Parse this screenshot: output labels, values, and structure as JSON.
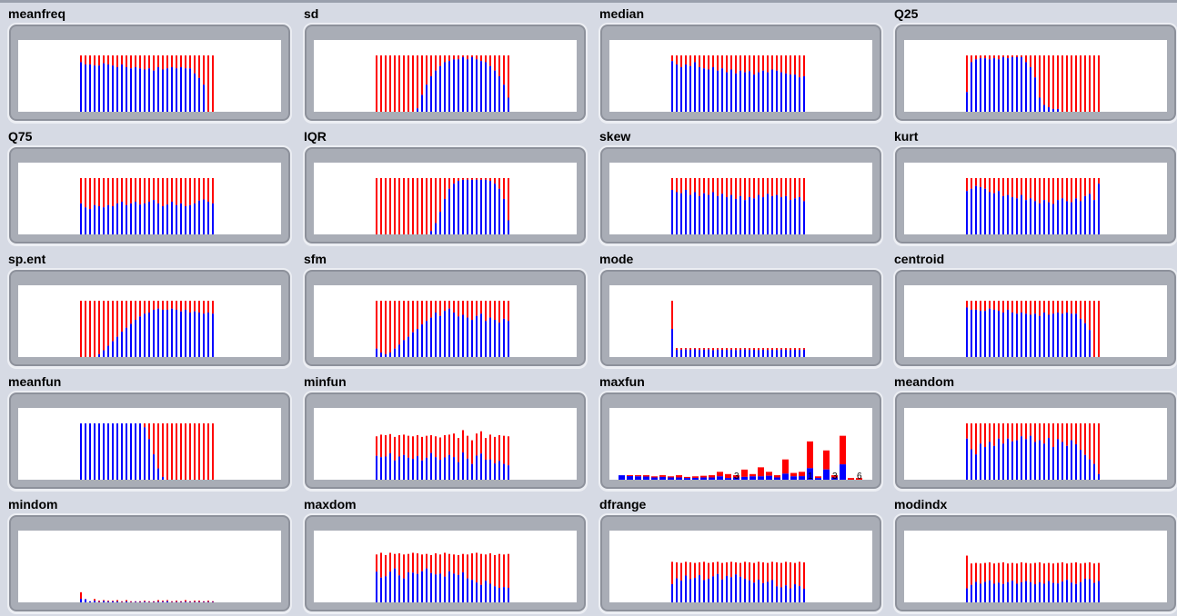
{
  "colors": {
    "a": "#ff0000",
    "b": "#0000ff",
    "label": "#000000"
  },
  "chart_data": [
    {
      "name": "meanfreq",
      "type": "bar",
      "stacked_proportion": true,
      "bars": 30,
      "full": [
        100,
        100,
        100,
        100,
        100,
        100,
        100,
        100,
        100,
        100,
        100,
        100,
        100,
        100,
        100,
        100,
        100,
        100,
        100,
        100,
        100,
        100,
        100,
        100,
        100,
        100,
        100,
        100,
        100,
        100
      ],
      "blue_fraction": [
        0.88,
        0.84,
        0.84,
        0.82,
        0.82,
        0.86,
        0.84,
        0.82,
        0.79,
        0.84,
        0.79,
        0.77,
        0.79,
        0.77,
        0.75,
        0.77,
        0.73,
        0.79,
        0.75,
        0.77,
        0.79,
        0.77,
        0.79,
        0.77,
        0.77,
        0.68,
        0.6,
        0.48,
        0.0,
        0.0
      ]
    },
    {
      "name": "sd",
      "type": "bar",
      "stacked_proportion": true,
      "bars": 30,
      "full": [
        100,
        100,
        100,
        100,
        100,
        100,
        100,
        100,
        100,
        100,
        100,
        100,
        100,
        100,
        100,
        100,
        100,
        100,
        100,
        100,
        100,
        100,
        100,
        100,
        100,
        100,
        100,
        100,
        100,
        100
      ],
      "blue_fraction": [
        0.0,
        0.0,
        0.0,
        0.0,
        0.0,
        0.0,
        0.0,
        0.0,
        0.0,
        0.06,
        0.3,
        0.48,
        0.63,
        0.73,
        0.81,
        0.88,
        0.9,
        0.93,
        0.93,
        0.97,
        0.93,
        0.97,
        0.93,
        0.9,
        0.88,
        0.81,
        0.73,
        0.63,
        0.48,
        0.25
      ]
    },
    {
      "name": "median",
      "type": "bar",
      "stacked_proportion": true,
      "bars": 30,
      "full": [
        100,
        100,
        100,
        100,
        100,
        100,
        100,
        100,
        100,
        100,
        100,
        100,
        100,
        100,
        100,
        100,
        100,
        100,
        100,
        100,
        100,
        100,
        100,
        100,
        100,
        100,
        100,
        100,
        100,
        100
      ],
      "blue_fraction": [
        0.9,
        0.84,
        0.79,
        0.84,
        0.81,
        0.88,
        0.79,
        0.77,
        0.75,
        0.79,
        0.73,
        0.77,
        0.7,
        0.75,
        0.68,
        0.73,
        0.7,
        0.72,
        0.66,
        0.7,
        0.73,
        0.7,
        0.75,
        0.73,
        0.7,
        0.68,
        0.66,
        0.66,
        0.61,
        0.63
      ]
    },
    {
      "name": "Q25",
      "type": "bar",
      "stacked_proportion": true,
      "bars": 30,
      "full": [
        100,
        100,
        100,
        100,
        100,
        100,
        100,
        100,
        100,
        100,
        100,
        100,
        100,
        100,
        100,
        100,
        100,
        100,
        100,
        100,
        100,
        100,
        100,
        100,
        100,
        100,
        100,
        100,
        100,
        100
      ],
      "blue_fraction": [
        0.35,
        0.88,
        0.93,
        0.95,
        0.95,
        0.93,
        0.95,
        0.93,
        0.97,
        0.95,
        0.97,
        0.97,
        0.97,
        0.88,
        0.79,
        0.61,
        0.25,
        0.12,
        0.08,
        0.05,
        0.05,
        0.0,
        0.0,
        0.0,
        0.0,
        0.0,
        0.0,
        0.0,
        0.0,
        0.0
      ]
    },
    {
      "name": "Q75",
      "type": "bar",
      "stacked_proportion": true,
      "bars": 30,
      "full": [
        100,
        100,
        100,
        100,
        100,
        100,
        100,
        100,
        100,
        100,
        100,
        100,
        100,
        100,
        100,
        100,
        100,
        100,
        100,
        100,
        100,
        100,
        100,
        100,
        100,
        100,
        100,
        100,
        100,
        100
      ],
      "blue_fraction": [
        0.55,
        0.48,
        0.45,
        0.52,
        0.5,
        0.48,
        0.52,
        0.5,
        0.55,
        0.58,
        0.52,
        0.55,
        0.58,
        0.53,
        0.55,
        0.58,
        0.61,
        0.55,
        0.5,
        0.53,
        0.58,
        0.52,
        0.55,
        0.5,
        0.52,
        0.55,
        0.6,
        0.62,
        0.58,
        0.55
      ]
    },
    {
      "name": "IQR",
      "type": "bar",
      "stacked_proportion": true,
      "bars": 30,
      "full": [
        100,
        100,
        100,
        100,
        100,
        100,
        100,
        100,
        100,
        100,
        100,
        100,
        100,
        100,
        100,
        100,
        100,
        100,
        100,
        100,
        100,
        100,
        100,
        100,
        100,
        100,
        100,
        100,
        100,
        100
      ],
      "blue_fraction": [
        0.0,
        0.0,
        0.0,
        0.0,
        0.0,
        0.0,
        0.0,
        0.0,
        0.0,
        0.0,
        0.0,
        0.0,
        0.06,
        0.2,
        0.4,
        0.63,
        0.81,
        0.9,
        0.95,
        0.97,
        0.97,
        0.97,
        0.97,
        0.97,
        0.97,
        0.95,
        0.9,
        0.81,
        0.63,
        0.25
      ]
    },
    {
      "name": "skew",
      "type": "bar",
      "stacked_proportion": true,
      "bars": 30,
      "full": [
        100,
        100,
        100,
        100,
        100,
        100,
        100,
        100,
        100,
        100,
        100,
        100,
        100,
        100,
        100,
        100,
        100,
        100,
        100,
        100,
        100,
        100,
        100,
        100,
        100,
        100,
        100,
        100,
        100,
        100
      ],
      "blue_fraction": [
        0.79,
        0.75,
        0.73,
        0.79,
        0.7,
        0.75,
        0.68,
        0.73,
        0.7,
        0.75,
        0.68,
        0.72,
        0.66,
        0.7,
        0.63,
        0.68,
        0.61,
        0.66,
        0.64,
        0.7,
        0.66,
        0.72,
        0.68,
        0.7,
        0.66,
        0.68,
        0.61,
        0.64,
        0.66,
        0.59
      ]
    },
    {
      "name": "kurt",
      "type": "bar",
      "stacked_proportion": true,
      "bars": 30,
      "full": [
        100,
        100,
        100,
        100,
        100,
        100,
        100,
        100,
        100,
        100,
        100,
        100,
        100,
        100,
        100,
        100,
        100,
        100,
        100,
        100,
        100,
        100,
        100,
        100,
        100,
        100,
        100,
        100,
        100,
        100
      ],
      "blue_fraction": [
        0.77,
        0.81,
        0.86,
        0.84,
        0.81,
        0.75,
        0.73,
        0.77,
        0.68,
        0.7,
        0.66,
        0.64,
        0.7,
        0.61,
        0.64,
        0.59,
        0.55,
        0.61,
        0.57,
        0.54,
        0.61,
        0.64,
        0.59,
        0.57,
        0.64,
        0.59,
        0.68,
        0.72,
        0.61,
        0.9
      ]
    },
    {
      "name": "sp.ent",
      "type": "bar",
      "stacked_proportion": true,
      "bars": 30,
      "full": [
        100,
        100,
        100,
        100,
        100,
        100,
        100,
        100,
        100,
        100,
        100,
        100,
        100,
        100,
        100,
        100,
        100,
        100,
        100,
        100,
        100,
        100,
        100,
        100,
        100,
        100,
        100,
        100,
        100,
        100
      ],
      "blue_fraction": [
        0.0,
        0.0,
        0.0,
        0.0,
        0.05,
        0.12,
        0.2,
        0.28,
        0.36,
        0.45,
        0.52,
        0.59,
        0.66,
        0.72,
        0.77,
        0.79,
        0.84,
        0.86,
        0.84,
        0.84,
        0.86,
        0.84,
        0.81,
        0.84,
        0.79,
        0.81,
        0.79,
        0.77,
        0.79,
        0.77
      ]
    },
    {
      "name": "sfm",
      "type": "bar",
      "stacked_proportion": true,
      "bars": 30,
      "full": [
        100,
        100,
        100,
        100,
        100,
        100,
        100,
        100,
        100,
        100,
        100,
        100,
        100,
        100,
        100,
        100,
        100,
        100,
        100,
        100,
        100,
        100,
        100,
        100,
        100,
        100,
        100,
        100,
        100,
        100
      ],
      "blue_fraction": [
        0.15,
        0.08,
        0.05,
        0.08,
        0.15,
        0.22,
        0.3,
        0.36,
        0.44,
        0.5,
        0.58,
        0.64,
        0.7,
        0.79,
        0.73,
        0.82,
        0.86,
        0.79,
        0.72,
        0.75,
        0.7,
        0.66,
        0.73,
        0.77,
        0.64,
        0.7,
        0.66,
        0.61,
        0.68,
        0.64
      ]
    },
    {
      "name": "mode",
      "type": "bar",
      "stacked_proportion": true,
      "bars": 30,
      "full": [
        100,
        16,
        16,
        16,
        16,
        16,
        16,
        16,
        16,
        16,
        16,
        16,
        16,
        16,
        16,
        16,
        16,
        16,
        16,
        16,
        16,
        16,
        16,
        16,
        16,
        16,
        16,
        16,
        16,
        16
      ],
      "blue_fraction": [
        0.5,
        0.8,
        0.82,
        0.84,
        0.81,
        0.86,
        0.79,
        0.82,
        0.84,
        0.77,
        0.82,
        0.81,
        0.8,
        0.82,
        0.78,
        0.81,
        0.84,
        0.79,
        0.81,
        0.77,
        0.82,
        0.78,
        0.81,
        0.79,
        0.83,
        0.8,
        0.78,
        0.81,
        0.79,
        0.82
      ]
    },
    {
      "name": "centroid",
      "type": "bar",
      "stacked_proportion": true,
      "bars": 30,
      "full": [
        100,
        100,
        100,
        100,
        100,
        100,
        100,
        100,
        100,
        100,
        100,
        100,
        100,
        100,
        100,
        100,
        100,
        100,
        100,
        100,
        100,
        100,
        100,
        100,
        100,
        100,
        100,
        100,
        100,
        100
      ],
      "blue_fraction": [
        0.88,
        0.84,
        0.84,
        0.82,
        0.82,
        0.86,
        0.84,
        0.82,
        0.79,
        0.84,
        0.79,
        0.77,
        0.79,
        0.77,
        0.75,
        0.77,
        0.73,
        0.79,
        0.75,
        0.77,
        0.79,
        0.77,
        0.79,
        0.77,
        0.77,
        0.68,
        0.6,
        0.48,
        0.0,
        0.0
      ]
    },
    {
      "name": "meanfun",
      "type": "bar",
      "stacked_proportion": true,
      "bars": 30,
      "full": [
        100,
        100,
        100,
        100,
        100,
        100,
        100,
        100,
        100,
        100,
        100,
        100,
        100,
        100,
        100,
        100,
        100,
        100,
        100,
        100,
        100,
        100,
        100,
        100,
        100,
        100,
        100,
        100,
        100,
        100
      ],
      "blue_fraction": [
        1,
        1,
        1,
        1,
        1,
        1,
        1,
        1,
        1,
        1,
        1,
        1,
        1,
        1,
        0.93,
        0.72,
        0.45,
        0.2,
        0.05,
        0,
        0,
        0,
        0,
        0,
        0,
        0,
        0,
        0,
        0,
        0
      ]
    },
    {
      "name": "minfun",
      "type": "bar",
      "stacked_proportion": true,
      "bars": 30,
      "full": [
        77,
        80,
        79,
        81,
        76,
        79,
        80,
        78,
        77,
        79,
        76,
        78,
        79,
        77,
        75,
        79,
        80,
        82,
        74,
        88,
        78,
        70,
        82,
        86,
        74,
        80,
        76,
        79,
        78,
        77
      ],
      "blue_fraction": [
        0.55,
        0.5,
        0.52,
        0.58,
        0.45,
        0.52,
        0.55,
        0.5,
        0.48,
        0.53,
        0.45,
        0.5,
        0.6,
        0.52,
        0.47,
        0.5,
        0.55,
        0.49,
        0.42,
        0.55,
        0.48,
        0.4,
        0.52,
        0.54,
        0.48,
        0.45,
        0.38,
        0.42,
        0.36,
        0.33
      ]
    },
    {
      "name": "maxfun",
      "type": "bar",
      "stacked_proportion": true,
      "bars": 30,
      "full": [
        8,
        8,
        8,
        8,
        6,
        8,
        6,
        8,
        5,
        6,
        7,
        8,
        14,
        10,
        8,
        18,
        10,
        22,
        14,
        8,
        36,
        12,
        14,
        68,
        6,
        52,
        8,
        78,
        3,
        3
      ],
      "blue_fraction": [
        0.99,
        0.8,
        0.75,
        0.7,
        0.67,
        0.62,
        0.67,
        0.5,
        0.6,
        0.55,
        0.57,
        0.5,
        0.43,
        0.3,
        0.5,
        0.28,
        0.6,
        0.27,
        0.5,
        0.5,
        0.3,
        0.5,
        0.45,
        0.3,
        0.5,
        0.35,
        0.5,
        0.35,
        0.0,
        0.0
      ],
      "value_labels": [
        {
          "bar": 14,
          "text": "3"
        },
        {
          "bar": 23,
          "text": "1"
        },
        {
          "bar": 26,
          "text": "3"
        },
        {
          "bar": 29,
          "text": "6"
        }
      ]
    },
    {
      "name": "meandom",
      "type": "bar",
      "stacked_proportion": true,
      "bars": 30,
      "full": [
        100,
        100,
        100,
        100,
        100,
        100,
        100,
        100,
        100,
        100,
        100,
        100,
        100,
        100,
        100,
        100,
        100,
        100,
        100,
        100,
        100,
        100,
        100,
        100,
        100,
        100,
        100,
        100,
        100,
        100
      ],
      "blue_fraction": [
        0.73,
        0.54,
        0.45,
        0.64,
        0.58,
        0.67,
        0.6,
        0.73,
        0.64,
        0.73,
        0.68,
        0.7,
        0.77,
        0.72,
        0.78,
        0.67,
        0.7,
        0.64,
        0.74,
        0.58,
        0.72,
        0.67,
        0.6,
        0.7,
        0.63,
        0.53,
        0.44,
        0.36,
        0.28,
        0.1
      ]
    },
    {
      "name": "mindom",
      "type": "bar",
      "stacked_proportion": true,
      "bars": 30,
      "full": [
        18,
        6,
        2,
        6,
        3,
        4,
        3,
        3,
        4,
        2,
        4,
        2,
        2,
        2,
        3,
        2,
        2,
        4,
        3,
        4,
        2,
        3,
        2,
        4,
        2,
        3,
        3,
        2,
        3,
        2
      ],
      "blue_fraction": [
        0.35,
        0.9,
        0.9,
        0.5,
        0.3,
        0.6,
        0.5,
        0.6,
        0.4,
        0.3,
        0.4,
        0.3,
        0.5,
        0.4,
        0.4,
        0.3,
        0.4,
        0.3,
        0.4,
        0.5,
        0.3,
        0.3,
        0.4,
        0.3,
        0.4,
        0.3,
        0.3,
        0.4,
        0.3,
        0.4
      ],
      "note": "sparse"
    },
    {
      "name": "maxdom",
      "type": "bar",
      "stacked_proportion": true,
      "bars": 30,
      "full": [
        85,
        88,
        84,
        88,
        86,
        87,
        85,
        86,
        88,
        87,
        85,
        86,
        84,
        87,
        85,
        88,
        86,
        85,
        84,
        86,
        85,
        87,
        88,
        86,
        85,
        87,
        84,
        86,
        85,
        86
      ],
      "blue_fraction": [
        0.64,
        0.5,
        0.55,
        0.62,
        0.7,
        0.55,
        0.5,
        0.62,
        0.6,
        0.58,
        0.65,
        0.7,
        0.62,
        0.57,
        0.6,
        0.52,
        0.64,
        0.6,
        0.58,
        0.62,
        0.5,
        0.46,
        0.4,
        0.36,
        0.45,
        0.38,
        0.34,
        0.3,
        0.32,
        0.3
      ]
    },
    {
      "name": "dfrange",
      "type": "bar",
      "stacked_proportion": true,
      "bars": 30,
      "full": [
        72,
        71,
        70,
        72,
        71,
        70,
        71,
        72,
        70,
        71,
        72,
        70,
        71,
        72,
        71,
        70,
        72,
        71,
        70,
        72,
        71,
        70,
        72,
        71,
        70,
        72,
        71,
        70,
        72,
        71
      ],
      "blue_fraction": [
        0.45,
        0.6,
        0.55,
        0.66,
        0.58,
        0.62,
        0.68,
        0.55,
        0.6,
        0.65,
        0.7,
        0.58,
        0.66,
        0.62,
        0.7,
        0.65,
        0.58,
        0.55,
        0.5,
        0.56,
        0.48,
        0.52,
        0.55,
        0.4,
        0.38,
        0.42,
        0.35,
        0.46,
        0.4,
        0.34
      ]
    },
    {
      "name": "modindx",
      "type": "bar",
      "stacked_proportion": true,
      "bars": 30,
      "full": [
        83,
        69,
        70,
        69,
        70,
        71,
        69,
        70,
        71,
        69,
        70,
        69,
        71,
        70,
        69,
        70,
        71,
        69,
        70,
        69,
        70,
        71,
        69,
        70,
        71,
        69,
        70,
        71,
        69,
        70
      ],
      "blue_fraction": [
        0.3,
        0.45,
        0.52,
        0.48,
        0.52,
        0.55,
        0.48,
        0.5,
        0.46,
        0.52,
        0.55,
        0.48,
        0.5,
        0.54,
        0.52,
        0.46,
        0.5,
        0.48,
        0.54,
        0.5,
        0.48,
        0.52,
        0.58,
        0.5,
        0.46,
        0.52,
        0.6,
        0.58,
        0.5,
        0.54
      ]
    }
  ]
}
